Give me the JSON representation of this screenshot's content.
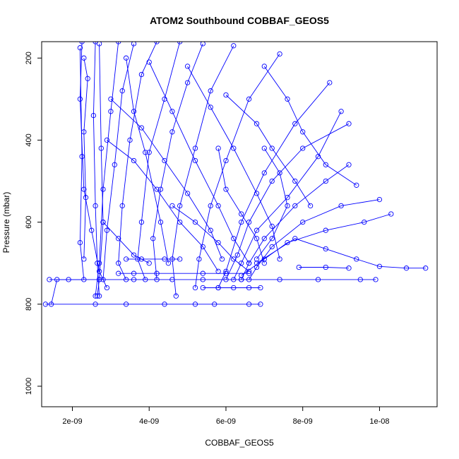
{
  "chart_data": {
    "type": "line",
    "title": "ATOM2 Southbound COBBAF_GEOS5",
    "xlabel": "COBBAF_GEOS5",
    "ylabel": "Pressure (mbar)",
    "xlim": [
      1.2e-09,
      1.15e-08
    ],
    "ylim": [
      1050,
      160
    ],
    "y_axis_inverted": true,
    "x_ticks": [
      {
        "value": 2e-09,
        "label": "2e-09"
      },
      {
        "value": 4e-09,
        "label": "4e-09"
      },
      {
        "value": 6e-09,
        "label": "6e-09"
      },
      {
        "value": 8e-09,
        "label": "8e-09"
      },
      {
        "value": 1e-08,
        "label": "1e-08"
      }
    ],
    "y_ticks": [
      {
        "value": 200,
        "label": "200"
      },
      {
        "value": 400,
        "label": "400"
      },
      {
        "value": 600,
        "label": "600"
      },
      {
        "value": 800,
        "label": "800"
      },
      {
        "value": 1000,
        "label": "1000"
      }
    ],
    "grid": false,
    "marker": "open-circle",
    "series_color": "#0000ff",
    "series": [
      {
        "points": [
          [
            2.25e-09,
            160
          ],
          [
            2.2e-09,
            300
          ],
          [
            2.3e-09,
            520
          ],
          [
            2.5e-09,
            620
          ],
          [
            2.7e-09,
            720
          ],
          [
            2.9e-09,
            760
          ]
        ]
      },
      {
        "points": [
          [
            2.6e-09,
            160
          ],
          [
            2.55e-09,
            340
          ],
          [
            2.6e-09,
            560
          ],
          [
            2.65e-09,
            700
          ],
          [
            2.7e-09,
            780
          ]
        ]
      },
      {
        "points": [
          [
            2.7e-09,
            165
          ],
          [
            2.75e-09,
            420
          ],
          [
            2.8e-09,
            600
          ],
          [
            2.7e-09,
            740
          ],
          [
            2.65e-09,
            780
          ]
        ]
      },
      {
        "points": [
          [
            2.2e-09,
            175
          ],
          [
            2.25e-09,
            440
          ],
          [
            2.2e-09,
            650
          ],
          [
            2.3e-09,
            740
          ],
          [
            1.6e-09,
            740
          ],
          [
            1.45e-09,
            800
          ]
        ]
      },
      {
        "points": [
          [
            3.2e-09,
            160
          ],
          [
            3e-09,
            330
          ],
          [
            2.8e-09,
            520
          ],
          [
            2.7e-09,
            700
          ],
          [
            2.6e-09,
            780
          ]
        ]
      },
      {
        "points": [
          [
            3.6e-09,
            165
          ],
          [
            3.3e-09,
            280
          ],
          [
            3.1e-09,
            460
          ],
          [
            2.9e-09,
            620
          ],
          [
            2.8e-09,
            740
          ]
        ]
      },
      {
        "points": [
          [
            4.2e-09,
            160
          ],
          [
            3.8e-09,
            240
          ],
          [
            3.5e-09,
            400
          ],
          [
            3.3e-09,
            560
          ],
          [
            3.2e-09,
            700
          ],
          [
            3.4e-09,
            740
          ]
        ]
      },
      {
        "points": [
          [
            4.8e-09,
            160
          ],
          [
            4.4e-09,
            300
          ],
          [
            4e-09,
            430
          ],
          [
            3.8e-09,
            600
          ],
          [
            3.7e-09,
            690
          ],
          [
            3.9e-09,
            740
          ]
        ]
      },
      {
        "points": [
          [
            5.4e-09,
            165
          ],
          [
            5e-09,
            260
          ],
          [
            4.6e-09,
            380
          ],
          [
            4.3e-09,
            520
          ],
          [
            4.1e-09,
            640
          ],
          [
            4.2e-09,
            740
          ]
        ]
      },
      {
        "points": [
          [
            6.2e-09,
            170
          ],
          [
            5.6e-09,
            280
          ],
          [
            5.2e-09,
            420
          ],
          [
            4.8e-09,
            560
          ],
          [
            4.6e-09,
            690
          ],
          [
            4.7e-09,
            780
          ]
        ]
      },
      {
        "points": [
          [
            7.4e-09,
            190
          ],
          [
            6.6e-09,
            300
          ],
          [
            6e-09,
            450
          ],
          [
            5.6e-09,
            560
          ],
          [
            5.3e-09,
            690
          ],
          [
            5.2e-09,
            760
          ]
        ]
      },
      {
        "points": [
          [
            8.7e-09,
            260
          ],
          [
            7.8e-09,
            360
          ],
          [
            7e-09,
            480
          ],
          [
            6.4e-09,
            600
          ],
          [
            6e-09,
            720
          ],
          [
            5.8e-09,
            760
          ]
        ]
      },
      {
        "points": [
          [
            9e-09,
            330
          ],
          [
            8.4e-09,
            440
          ],
          [
            7.6e-09,
            540
          ],
          [
            6.8e-09,
            620
          ],
          [
            6.4e-09,
            700
          ],
          [
            6.2e-09,
            740
          ]
        ]
      },
      {
        "points": [
          [
            9.2e-09,
            360
          ],
          [
            8e-09,
            420
          ],
          [
            7.2e-09,
            500
          ],
          [
            6.6e-09,
            600
          ],
          [
            6.3e-09,
            680
          ],
          [
            6e-09,
            740
          ]
        ]
      },
      {
        "points": [
          [
            9.2e-09,
            460
          ],
          [
            8.6e-09,
            500
          ],
          [
            7.8e-09,
            560
          ],
          [
            7e-09,
            640
          ],
          [
            6.6e-09,
            700
          ],
          [
            6.4e-09,
            740
          ]
        ]
      },
      {
        "points": [
          [
            1e-08,
            545
          ],
          [
            9e-09,
            560
          ],
          [
            8e-09,
            600
          ],
          [
            7.2e-09,
            660
          ],
          [
            6.8e-09,
            710
          ],
          [
            6.6e-09,
            740
          ]
        ]
      },
      {
        "points": [
          [
            1.03e-08,
            580
          ],
          [
            9.6e-09,
            600
          ],
          [
            8.6e-09,
            620
          ],
          [
            7.6e-09,
            650
          ],
          [
            7e-09,
            690
          ],
          [
            6.4e-09,
            730
          ]
        ]
      },
      {
        "points": [
          [
            1.12e-08,
            712
          ],
          [
            1.07e-08,
            712
          ],
          [
            1e-08,
            708
          ],
          [
            9.4e-09,
            690
          ],
          [
            8.6e-09,
            665
          ],
          [
            7.8e-09,
            640
          ],
          [
            6.8e-09,
            700
          ]
        ]
      },
      {
        "points": [
          [
            1.3e-09,
            800
          ],
          [
            2.6e-09,
            800
          ],
          [
            3.4e-09,
            800
          ],
          [
            4.4e-09,
            800
          ],
          [
            5.2e-09,
            800
          ],
          [
            5.7e-09,
            800
          ],
          [
            6.6e-09,
            800
          ],
          [
            6.9e-09,
            800
          ]
        ]
      },
      {
        "points": [
          [
            1.4e-09,
            740
          ],
          [
            1.9e-09,
            740
          ],
          [
            2.7e-09,
            740
          ],
          [
            3.6e-09,
            740
          ],
          [
            4.6e-09,
            740
          ],
          [
            5.4e-09,
            740
          ],
          [
            6.4e-09,
            740
          ],
          [
            7.4e-09,
            740
          ],
          [
            8.4e-09,
            740
          ],
          [
            9.5e-09,
            740
          ],
          [
            9.9e-09,
            740
          ]
        ]
      },
      {
        "points": [
          [
            3.2e-09,
            725
          ],
          [
            3.6e-09,
            725
          ],
          [
            4.2e-09,
            725
          ],
          [
            5.4e-09,
            725
          ],
          [
            6e-09,
            725
          ],
          [
            6.6e-09,
            725
          ]
        ]
      },
      {
        "points": [
          [
            3.4e-09,
            690
          ],
          [
            3.8e-09,
            690
          ],
          [
            4.4e-09,
            690
          ],
          [
            4.8e-09,
            690
          ]
        ]
      },
      {
        "points": [
          [
            5.4e-09,
            760
          ],
          [
            5.8e-09,
            760
          ],
          [
            6.2e-09,
            760
          ],
          [
            6.6e-09,
            760
          ],
          [
            6.9e-09,
            760
          ]
        ]
      },
      {
        "points": [
          [
            7.9e-09,
            710
          ],
          [
            8.6e-09,
            710
          ],
          [
            9.2e-09,
            712
          ]
        ]
      },
      {
        "points": [
          [
            2.3e-09,
            200
          ],
          [
            2.4e-09,
            250
          ],
          [
            2.3e-09,
            380
          ],
          [
            2.35e-09,
            540
          ],
          [
            2.3e-09,
            690
          ]
        ]
      },
      {
        "points": [
          [
            3.4e-09,
            200
          ],
          [
            3.6e-09,
            330
          ],
          [
            3.9e-09,
            430
          ],
          [
            4.3e-09,
            600
          ],
          [
            4.5e-09,
            700
          ]
        ]
      },
      {
        "points": [
          [
            4e-09,
            210
          ],
          [
            4.6e-09,
            330
          ],
          [
            5.2e-09,
            450
          ],
          [
            5.8e-09,
            560
          ],
          [
            6.2e-09,
            640
          ],
          [
            6.6e-09,
            700
          ]
        ]
      },
      {
        "points": [
          [
            5e-09,
            220
          ],
          [
            5.6e-09,
            320
          ],
          [
            6.2e-09,
            420
          ],
          [
            6.8e-09,
            530
          ],
          [
            7.2e-09,
            610
          ],
          [
            7.4e-09,
            690
          ]
        ]
      },
      {
        "points": [
          [
            6e-09,
            290
          ],
          [
            6.8e-09,
            360
          ],
          [
            7.2e-09,
            420
          ],
          [
            7.8e-09,
            500
          ],
          [
            8.2e-09,
            560
          ]
        ]
      },
      {
        "points": [
          [
            2.9e-09,
            400
          ],
          [
            3.6e-09,
            450
          ],
          [
            4.2e-09,
            520
          ],
          [
            4.8e-09,
            600
          ],
          [
            5.4e-09,
            660
          ],
          [
            5.8e-09,
            720
          ]
        ]
      },
      {
        "points": [
          [
            3e-09,
            300
          ],
          [
            3.8e-09,
            370
          ],
          [
            4.4e-09,
            450
          ],
          [
            5e-09,
            530
          ],
          [
            5.6e-09,
            620
          ],
          [
            5.9e-09,
            690
          ]
        ]
      },
      {
        "points": [
          [
            7e-09,
            220
          ],
          [
            7.6e-09,
            300
          ],
          [
            8e-09,
            380
          ],
          [
            8.6e-09,
            460
          ],
          [
            9.4e-09,
            510
          ]
        ]
      },
      {
        "points": [
          [
            2.8e-09,
            600
          ],
          [
            3.2e-09,
            640
          ],
          [
            3.6e-09,
            680
          ],
          [
            4e-09,
            700
          ]
        ]
      },
      {
        "points": [
          [
            4.6e-09,
            560
          ],
          [
            5.2e-09,
            600
          ],
          [
            5.8e-09,
            650
          ],
          [
            6.2e-09,
            690
          ],
          [
            6.6e-09,
            720
          ]
        ]
      },
      {
        "points": [
          [
            5.8e-09,
            420
          ],
          [
            6e-09,
            520
          ],
          [
            6.4e-09,
            580
          ],
          [
            6.8e-09,
            640
          ],
          [
            7e-09,
            700
          ]
        ]
      },
      {
        "points": [
          [
            7e-09,
            420
          ],
          [
            7.4e-09,
            480
          ],
          [
            7.6e-09,
            560
          ],
          [
            7.2e-09,
            640
          ],
          [
            6.8e-09,
            690
          ]
        ]
      }
    ]
  }
}
